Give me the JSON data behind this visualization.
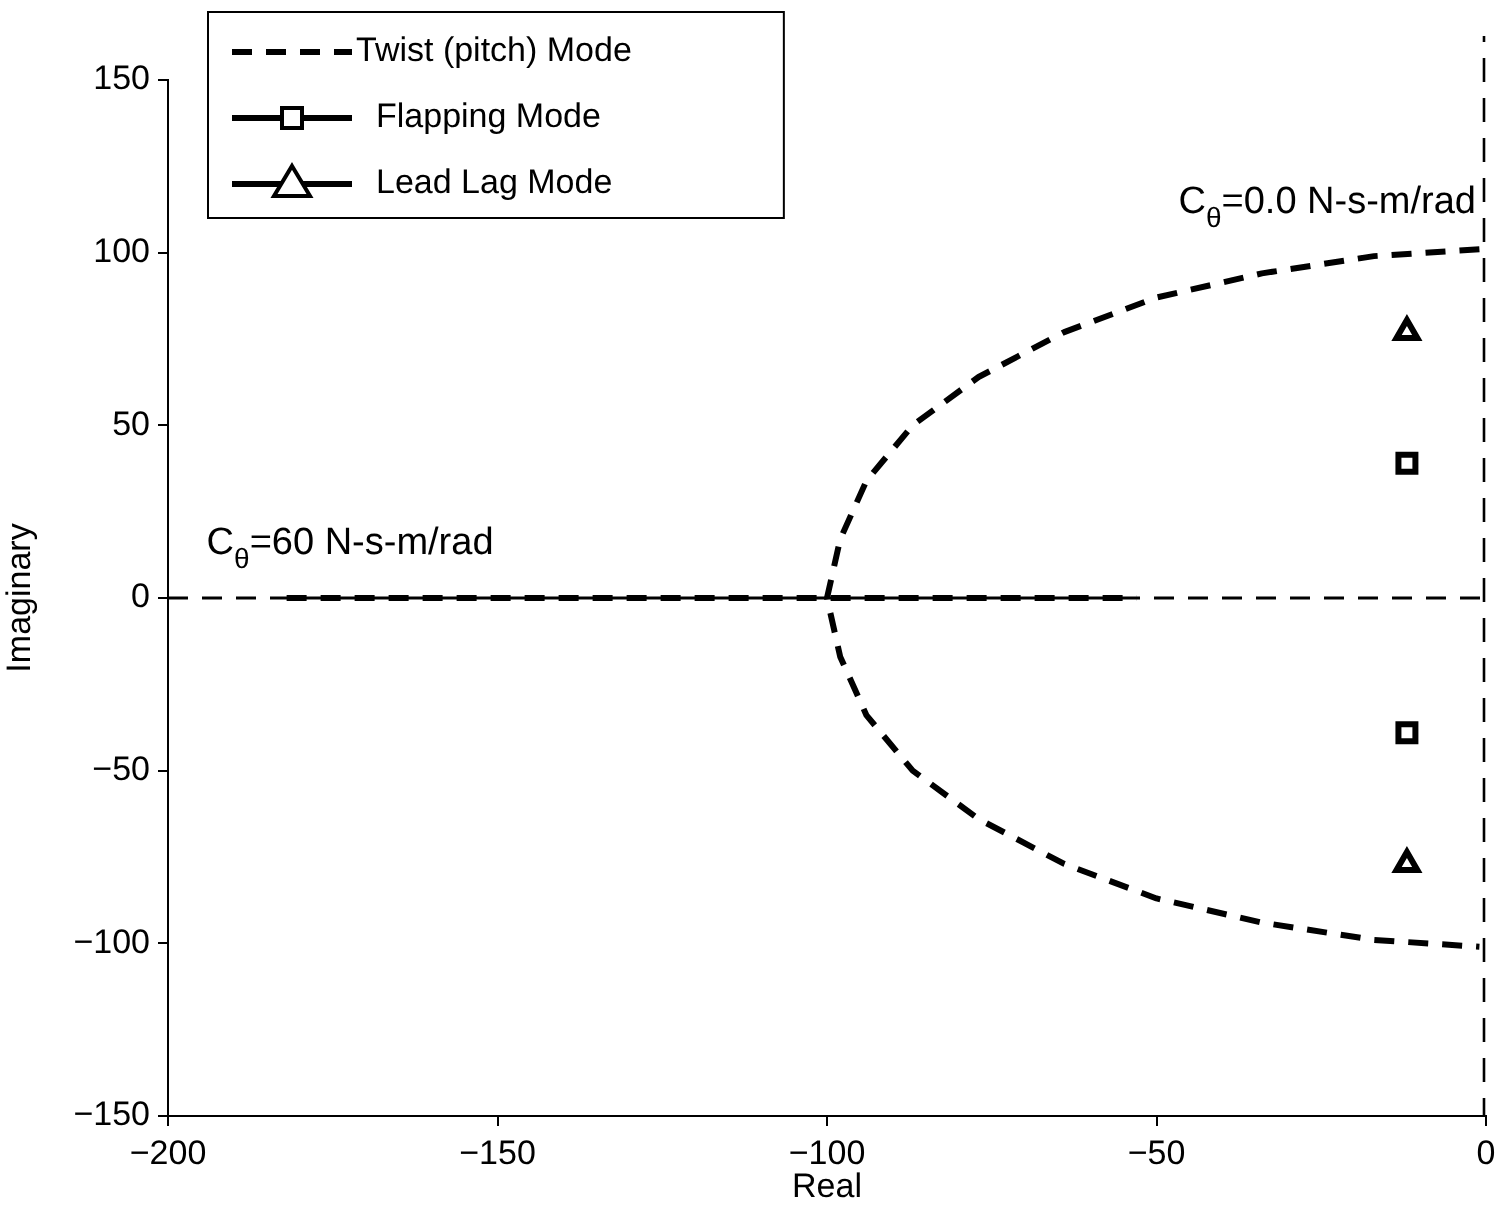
{
  "chart_data": {
    "type": "line",
    "xlabel": "Real",
    "ylabel": "Imaginary",
    "xlim": [
      -200,
      0
    ],
    "xticks": [
      -200,
      -150,
      -100,
      -50,
      0
    ],
    "ylim": [
      -150,
      150
    ],
    "yticks": [
      -150,
      -100,
      -50,
      0,
      50,
      100,
      150
    ],
    "grid": false,
    "legend": "top left",
    "series": [
      {
        "name": "Twist (pitch) Mode",
        "type": "line",
        "marker": "none",
        "line_style": "dashed",
        "color": "#000000",
        "x": [
          -1,
          -17,
          -34,
          -50,
          -64,
          -77,
          -87,
          -94,
          -98,
          -100,
          -98,
          -94,
          -87,
          -77,
          -64,
          -50,
          -34,
          -17,
          -1
        ],
        "values": [
          101,
          99,
          94,
          87,
          77,
          64,
          50,
          34,
          17,
          0,
          -17,
          -34,
          -50,
          -64,
          -77,
          -87,
          -94,
          -99,
          -101
        ]
      },
      {
        "type": "line",
        "marker": "none",
        "line_style": "dashed",
        "color": "#000000",
        "x": [
          -182,
          -100,
          -53
        ],
        "values": [
          0,
          0,
          0
        ]
      },
      {
        "name": "Flapping Mode",
        "type": "scatter",
        "marker": "square",
        "color": "#000000",
        "x": [
          -12,
          -12
        ],
        "values": [
          39,
          -39
        ]
      },
      {
        "name": "Lead Lag Mode",
        "type": "scatter",
        "marker": "triangle",
        "color": "#000000",
        "x": [
          -12,
          -12
        ],
        "values": [
          77,
          -77
        ]
      }
    ],
    "ref_lines": [
      {
        "axis": "y",
        "value": 0,
        "label": null,
        "line_style": "dashed",
        "color": "#000000"
      },
      {
        "axis": "x",
        "value": 0,
        "label": null,
        "line_style": "dashed",
        "color": "#000000"
      }
    ],
    "annotations": [
      {
        "text": "C$_{θ}$=0.0 N-s-m/rad",
        "x": 0,
        "y": 100
      },
      {
        "text": "C$_{θ}$=60 N-s-m/rad",
        "x": -182,
        "y": 0
      }
    ]
  }
}
